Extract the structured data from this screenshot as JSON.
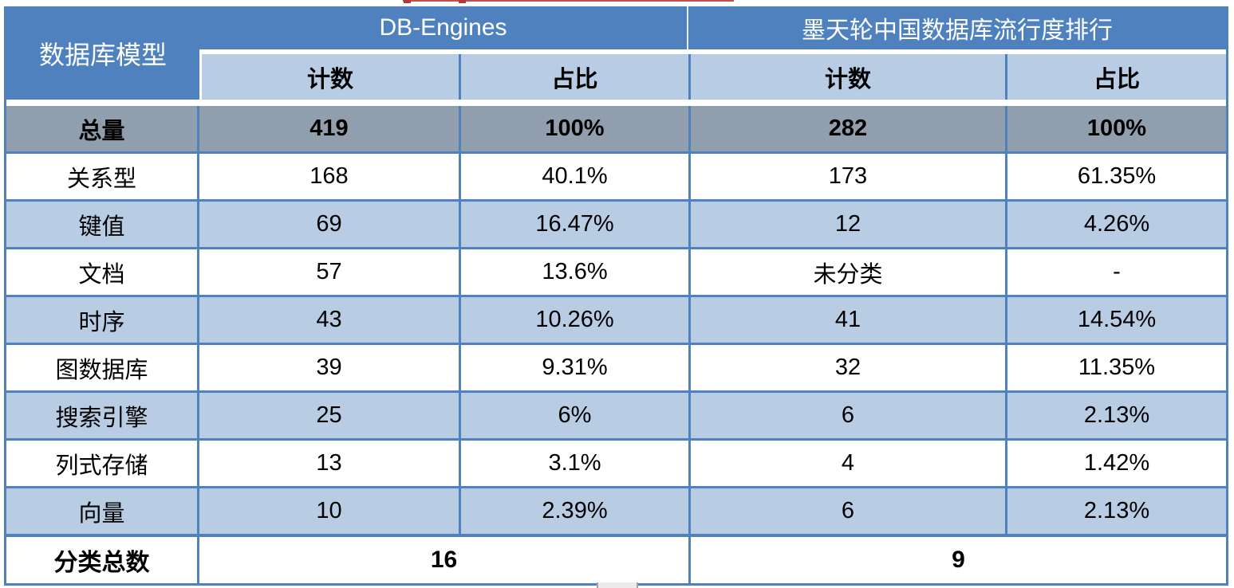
{
  "colors": {
    "header_blue": "#4e81be",
    "row_light_blue": "#b8cce4",
    "total_row_gray": "#919eae",
    "grid_border_blue": "#4f81bd",
    "top_fragment_red": "#c2504a"
  },
  "chart_data": {
    "type": "table",
    "row_header": "数据库模型",
    "column_groups": [
      "DB-Engines",
      "墨天轮中国数据库流行度排行"
    ],
    "sub_columns": [
      "计数",
      "占比",
      "计数",
      "占比"
    ],
    "rows": [
      {
        "label": "总量",
        "values": [
          "419",
          "100%",
          "282",
          "100%"
        ]
      },
      {
        "label": "关系型",
        "values": [
          "168",
          "40.1%",
          "173",
          "61.35%"
        ]
      },
      {
        "label": "键值",
        "values": [
          "69",
          "16.47%",
          "12",
          "4.26%"
        ]
      },
      {
        "label": "文档",
        "values": [
          "57",
          "13.6%",
          "未分类",
          "-"
        ]
      },
      {
        "label": "时序",
        "values": [
          "43",
          "10.26%",
          "41",
          "14.54%"
        ]
      },
      {
        "label": "图数据库",
        "values": [
          "39",
          "9.31%",
          "32",
          "11.35%"
        ]
      },
      {
        "label": "搜索引擎",
        "values": [
          "25",
          "6%",
          "6",
          "2.13%"
        ]
      },
      {
        "label": "列式存储",
        "values": [
          "13",
          "3.1%",
          "4",
          "1.42%"
        ]
      },
      {
        "label": "向量",
        "values": [
          "10",
          "2.39%",
          "6",
          "2.13%"
        ]
      }
    ],
    "footer": {
      "label": "分类总数",
      "values": [
        "16",
        "9"
      ]
    }
  }
}
